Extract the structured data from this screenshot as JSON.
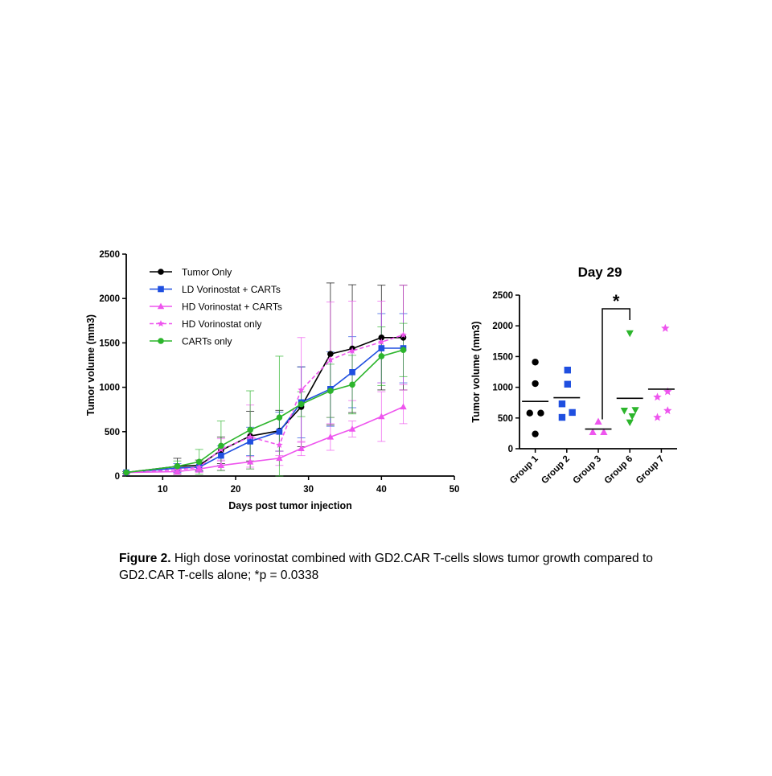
{
  "colors": {
    "tumor_only": "#000000",
    "ld_vorinostat_carts": "#1f4fe0",
    "hd_vorinostat_carts": "#ee55ee",
    "hd_vorinostat_only": "#ee55ee",
    "carts_only": "#2cb52c",
    "group1": "#000000",
    "group2": "#1f4fe0",
    "group3": "#ee55ee",
    "group6": "#2cb52c",
    "group7": "#ee55ee"
  },
  "chart_data": [
    {
      "type": "line",
      "title": "",
      "xlabel": "Days post tumor injection",
      "ylabel": "Tumor volume (mm3)",
      "xlim": [
        5,
        50
      ],
      "ylim": [
        0,
        2500
      ],
      "xticks": [
        10,
        20,
        30,
        40,
        50
      ],
      "yticks": [
        0,
        500,
        1000,
        1500,
        2000,
        2500
      ],
      "legend_position": "top-left",
      "x": [
        5,
        12,
        15,
        18,
        22,
        26,
        29,
        33,
        36,
        40,
        43
      ],
      "series": [
        {
          "name": "Tumor Only",
          "marker": "circle",
          "line": "solid",
          "color_key": "tumor_only",
          "values": [
            40,
            110,
            120,
            290,
            450,
            510,
            780,
            1375,
            1435,
            1560,
            1560
          ],
          "errors": [
            10,
            90,
            60,
            150,
            280,
            230,
            450,
            800,
            720,
            590,
            590
          ]
        },
        {
          "name": " LD Vorinostat + CARTs",
          "marker": "square",
          "line": "solid",
          "color_key": "ld_vorinostat_carts",
          "values": [
            40,
            90,
            100,
            230,
            390,
            500,
            830,
            980,
            1170,
            1440,
            1440
          ],
          "errors": [
            10,
            50,
            50,
            110,
            160,
            220,
            400,
            420,
            400,
            390,
            390
          ]
        },
        {
          "name": "HD Vorinostat + CARTs",
          "marker": "triangle",
          "line": "solid",
          "color_key": "hd_vorinostat_carts",
          "values": [
            40,
            50,
            80,
            120,
            160,
            200,
            310,
            440,
            530,
            670,
            780
          ],
          "errors": [
            10,
            30,
            30,
            50,
            60,
            80,
            80,
            150,
            90,
            280,
            190
          ]
        },
        {
          "name": "HD Vorinostat only",
          "marker": "star",
          "line": "dashed",
          "color_key": "hd_vorinostat_only",
          "values": [
            40,
            70,
            100,
            300,
            440,
            350,
            970,
            1310,
            1410,
            1510,
            1590
          ],
          "errors": [
            10,
            40,
            60,
            120,
            360,
            120,
            590,
            650,
            560,
            460,
            560
          ]
        },
        {
          "name": "CARTs only",
          "marker": "circle",
          "line": "solid",
          "color_key": "carts_only",
          "values": [
            40,
            110,
            160,
            340,
            520,
            660,
            810,
            960,
            1030,
            1350,
            1420
          ],
          "errors": [
            10,
            60,
            140,
            280,
            440,
            690,
            140,
            300,
            330,
            330,
            300
          ]
        }
      ]
    },
    {
      "type": "scatter",
      "title": "Day 29",
      "xlabel": "",
      "ylabel": "Tumor volume (mm3)",
      "ylim": [
        0,
        2500
      ],
      "yticks": [
        0,
        500,
        1000,
        1500,
        2000,
        2500
      ],
      "categories": [
        "Group 1",
        "Group 2",
        "Group 3",
        "Group 6",
        "Group 7"
      ],
      "groups": [
        {
          "name": "Group 1",
          "marker": "circle",
          "color_key": "group1",
          "points": [
            {
              "x": 0,
              "y": 1410
            },
            {
              "x": 0,
              "y": 1060
            },
            {
              "x": -0.35,
              "y": 580
            },
            {
              "x": 0.35,
              "y": 580
            },
            {
              "x": 0,
              "y": 240
            }
          ],
          "mean": 770
        },
        {
          "name": "Group 2",
          "marker": "square",
          "color_key": "group2",
          "points": [
            {
              "x": 0.05,
              "y": 1280
            },
            {
              "x": 0.05,
              "y": 1050
            },
            {
              "x": -0.3,
              "y": 730
            },
            {
              "x": 0.35,
              "y": 590
            },
            {
              "x": -0.3,
              "y": 510
            }
          ],
          "mean": 830
        },
        {
          "name": "Group 3",
          "marker": "triangle",
          "color_key": "group3",
          "points": [
            {
              "x": 0,
              "y": 440
            },
            {
              "x": -0.35,
              "y": 270
            },
            {
              "x": 0.35,
              "y": 270
            }
          ],
          "mean": 320
        },
        {
          "name": "Group 6",
          "marker": "triangle-down",
          "color_key": "group6",
          "points": [
            {
              "x": 0,
              "y": 1880
            },
            {
              "x": -0.35,
              "y": 620
            },
            {
              "x": 0.35,
              "y": 630
            },
            {
              "x": 0.15,
              "y": 530
            },
            {
              "x": 0,
              "y": 430
            }
          ],
          "mean": 820
        },
        {
          "name": "Group 7",
          "marker": "star",
          "color_key": "group7",
          "points": [
            {
              "x": 0.25,
              "y": 1960
            },
            {
              "x": 0.4,
              "y": 930
            },
            {
              "x": -0.25,
              "y": 840
            },
            {
              "x": 0.4,
              "y": 620
            },
            {
              "x": -0.25,
              "y": 510
            }
          ],
          "mean": 970
        }
      ],
      "significance": {
        "from": "Group 3",
        "to": "Group 6",
        "label": "*"
      }
    }
  ],
  "caption": {
    "lead": "Figure 2.",
    "text": " High dose vorinostat combined with GD2.CAR T-cells slows tumor growth compared to GD2.CAR T-cells alone; *p = 0.0338"
  }
}
